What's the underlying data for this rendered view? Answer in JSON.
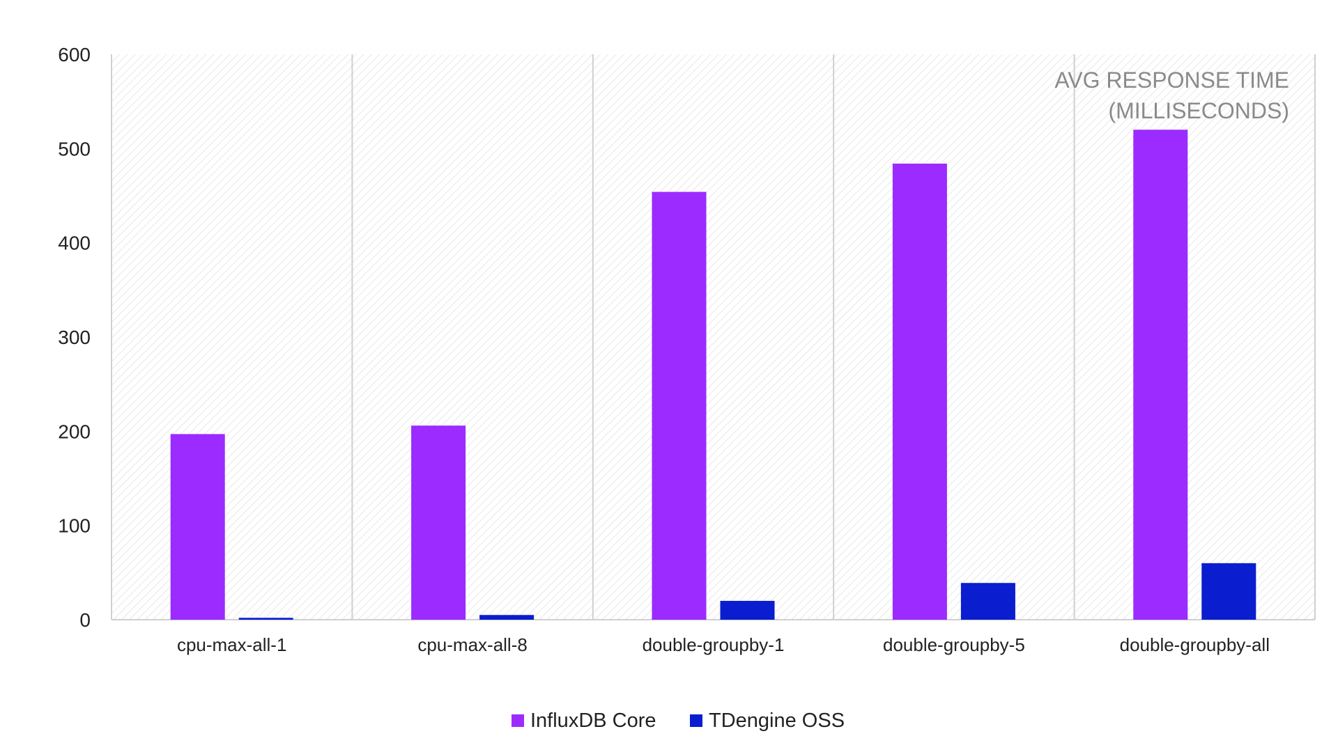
{
  "chart_data": {
    "type": "bar",
    "title_lines": [
      "AVG RESPONSE TIME",
      "(MILLISECONDS)"
    ],
    "xlabel": "",
    "ylabel": "",
    "ylim": [
      0,
      600
    ],
    "yticks": [
      0,
      100,
      200,
      300,
      400,
      500,
      600
    ],
    "grid": "vertical category separators",
    "legend_position": "bottom-center",
    "categories": [
      "cpu-max-all-1",
      "cpu-max-all-8",
      "double-groupby-1",
      "double-groupby-5",
      "double-groupby-all"
    ],
    "series": [
      {
        "name": "InfluxDB Core",
        "color": "#9b2bff",
        "values": [
          197,
          206,
          454,
          484,
          520
        ]
      },
      {
        "name": "TDengine OSS",
        "color": "#0a1ecf",
        "values": [
          2,
          5,
          20,
          39,
          60
        ]
      }
    ]
  }
}
